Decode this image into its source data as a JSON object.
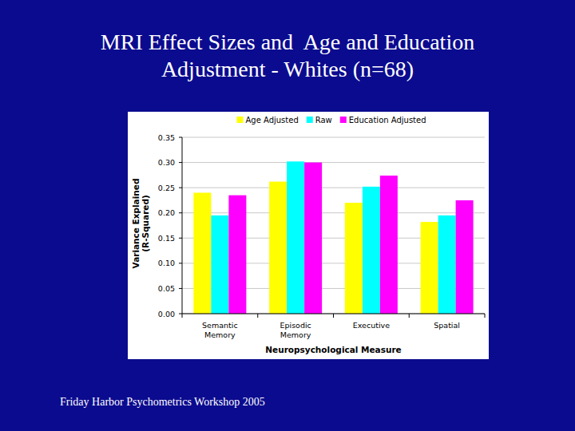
{
  "chart_data": {
    "type": "bar",
    "title": "MRI Effect Sizes and  Age and Education Adjustment - Whites (n=68)",
    "footer": "Friday Harbor Psychometrics Workshop 2005",
    "x_label": "Neuropsychological Measure",
    "y_label": "Variance Explained\n(R-Squared)",
    "categories": [
      "Semantic\nMemory",
      "Episodic\nMemory",
      "Executive",
      "Spatial"
    ],
    "series": [
      {
        "name": "Age Adjusted",
        "color": "#ffff00",
        "values": [
          0.24,
          0.262,
          0.22,
          0.182
        ]
      },
      {
        "name": "Raw",
        "color": "#00ffff",
        "values": [
          0.195,
          0.302,
          0.252,
          0.195
        ]
      },
      {
        "name": "Education Adjusted",
        "color": "#ff00ff",
        "values": [
          0.235,
          0.3,
          0.274,
          0.225
        ]
      }
    ],
    "ylim": [
      0,
      0.35
    ],
    "yticks": [
      {
        "value": 0,
        "label": "0.00"
      },
      {
        "value": 0.05,
        "label": "0.05"
      },
      {
        "value": 0.1,
        "label": "0.10"
      },
      {
        "value": 0.15,
        "label": "0.15"
      },
      {
        "value": 0.2,
        "label": "0.20"
      },
      {
        "value": 0.25,
        "label": "0.25"
      },
      {
        "value": 0.3,
        "label": "0.30"
      },
      {
        "value": 0.35,
        "label": "0.35"
      }
    ],
    "grid": true,
    "legend": "top"
  }
}
